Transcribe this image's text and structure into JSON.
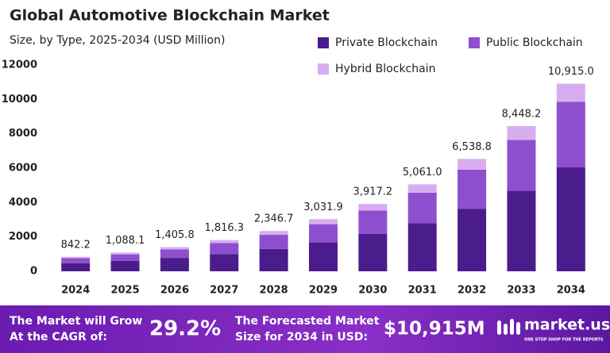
{
  "chart_data": {
    "type": "stacked_bar",
    "title": "Global Automotive Blockchain Market",
    "subtitle": "Size, by Type, 2025-2034 (USD Million)",
    "categories": [
      "2024",
      "2025",
      "2026",
      "2027",
      "2028",
      "2029",
      "2030",
      "2031",
      "2032",
      "2033",
      "2034"
    ],
    "series": [
      {
        "name": "Private Blockchain",
        "color": "#4b1c8c",
        "values": [
          466,
          603,
          779,
          1006,
          1300,
          1680,
          2170,
          2804,
          3623,
          4680,
          6047
        ]
      },
      {
        "name": "Public Blockchain",
        "color": "#8e4fcf",
        "values": [
          295,
          381,
          492,
          636,
          821,
          1061,
          1371,
          1771,
          2288,
          2957,
          3820
        ]
      },
      {
        "name": "Hybrid Blockchain",
        "color": "#d6aef0",
        "values": [
          81,
          104,
          135,
          174,
          226,
          291,
          376,
          486,
          628,
          811,
          1048
        ]
      }
    ],
    "totals": {
      "values": [
        842.2,
        1088.1,
        1405.8,
        1816.3,
        2346.7,
        3031.9,
        3917.2,
        5061.0,
        6538.8,
        8448.2,
        10915.0
      ],
      "value_labels": [
        "842.2",
        "1,088.1",
        "1,405.8",
        "1,816.3",
        "2,346.7",
        "3,031.9",
        "3,917.2",
        "5,061.0",
        "6,538.8",
        "8,448.2",
        "10,915.0"
      ]
    },
    "ylim": [
      0,
      12000
    ],
    "yticks": [
      0,
      2000,
      4000,
      6000,
      8000,
      10000,
      12000
    ],
    "grid": false
  },
  "footer": {
    "cagr_label": [
      "The Market will Grow",
      "At the CAGR of:"
    ],
    "cagr": "29.2%",
    "forecast_label": [
      "The Forecasted Market",
      "Size for 2034 in USD:"
    ],
    "forecast": "$10,915M",
    "brand": "market.us",
    "tagline": "ONE STOP SHOP FOR THE REPORTS"
  }
}
